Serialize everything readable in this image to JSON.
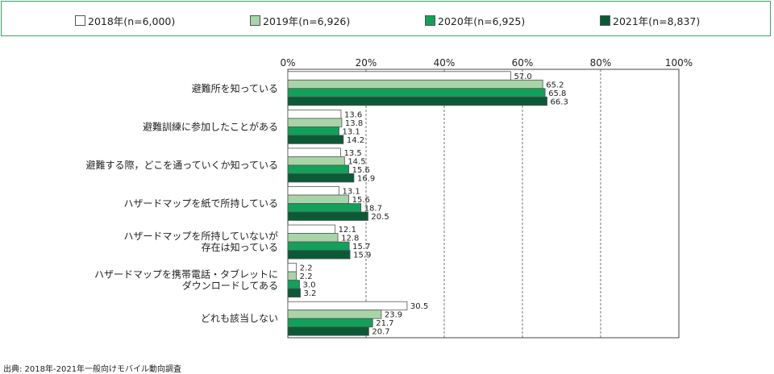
{
  "colors": {
    "border": "#3aa36b"
  },
  "chart_data": {
    "type": "bar",
    "orientation": "horizontal",
    "xlim": [
      0,
      100
    ],
    "x_ticks": [
      "0%",
      "20%",
      "40%",
      "60%",
      "80%",
      "100%"
    ],
    "grid": "vertical dashed",
    "legend_position": "top",
    "categories": [
      [
        "避難所を知っている"
      ],
      [
        "避難訓練に参加したことがある"
      ],
      [
        "避難する際，どこを通っていくか知っている"
      ],
      [
        "ハザードマップを紙で所持している"
      ],
      [
        "ハザードマップを所持していないが",
        "存在は知っている"
      ],
      [
        "ハザードマップを携帯電話・タブレットに",
        "ダウンロードしてある"
      ],
      [
        "どれも該当しない"
      ]
    ],
    "series": [
      {
        "name": "2018年(n=6,000)",
        "color": "#ffffff",
        "values": [
          57.0,
          13.6,
          13.5,
          13.1,
          12.1,
          2.2,
          30.5
        ]
      },
      {
        "name": "2019年(n=6,926)",
        "color": "#a8d5a8",
        "values": [
          65.2,
          13.8,
          14.5,
          15.6,
          12.8,
          2.2,
          23.9
        ]
      },
      {
        "name": "2020年(n=6,925)",
        "color": "#12a05a",
        "values": [
          65.8,
          13.1,
          15.6,
          18.7,
          15.7,
          3.0,
          21.7
        ]
      },
      {
        "name": "2021年(n=8,837)",
        "color": "#0a5a36",
        "values": [
          66.3,
          14.2,
          16.9,
          20.5,
          15.9,
          3.2,
          20.7
        ]
      }
    ]
  },
  "source": "出典: 2018年-2021年一般向けモバイル動向調査"
}
